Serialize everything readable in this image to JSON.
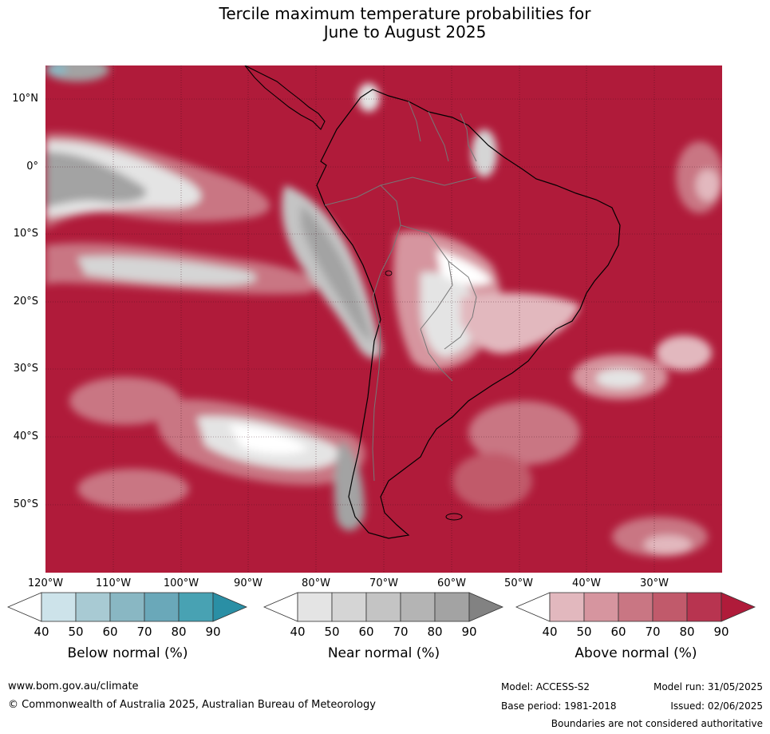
{
  "title": {
    "line1": "Tercile maximum temperature probabilities for",
    "line2": "June to August 2025"
  },
  "map": {
    "lat_labels": [
      "10°N",
      "0°",
      "10°S",
      "20°S",
      "30°S",
      "40°S",
      "50°S"
    ],
    "lon_labels": [
      "120°W",
      "110°W",
      "100°W",
      "90°W",
      "80°W",
      "70°W",
      "60°W",
      "50°W",
      "40°W",
      "30°W"
    ],
    "extent": {
      "lon_min": -120,
      "lon_max": -20,
      "lat_min": -60,
      "lat_max": 15
    }
  },
  "colorbars": [
    {
      "title": "Below normal (%)",
      "ticks": [
        "40",
        "50",
        "60",
        "70",
        "80",
        "90"
      ],
      "colors": [
        "#ffffff",
        "#cde3ea",
        "#a8cad3",
        "#89b7c3",
        "#6aa8b9",
        "#48a2b3",
        "#2a8fa5"
      ]
    },
    {
      "title": "Near normal (%)",
      "ticks": [
        "40",
        "50",
        "60",
        "70",
        "80",
        "90"
      ],
      "colors": [
        "#ffffff",
        "#e4e4e4",
        "#d5d5d5",
        "#c4c4c4",
        "#b4b4b4",
        "#a3a3a3",
        "#828282"
      ]
    },
    {
      "title": "Above normal (%)",
      "ticks": [
        "40",
        "50",
        "60",
        "70",
        "80",
        "90"
      ],
      "colors": [
        "#ffffff",
        "#e2b8be",
        "#d6959f",
        "#c97683",
        "#c15a6b",
        "#b83450",
        "#b01b3a"
      ]
    }
  ],
  "footer": {
    "url": "www.bom.gov.au/climate",
    "copyright": "© Commonwealth of Australia 2025, Australian Bureau of Meteorology",
    "model": "Model: ACCESS-S2",
    "model_run": "Model run: 31/05/2025",
    "base_period": "Base period: 1981-2018",
    "issued": "Issued: 02/06/2025",
    "disclaimer": "Boundaries are not considered authoritative"
  }
}
